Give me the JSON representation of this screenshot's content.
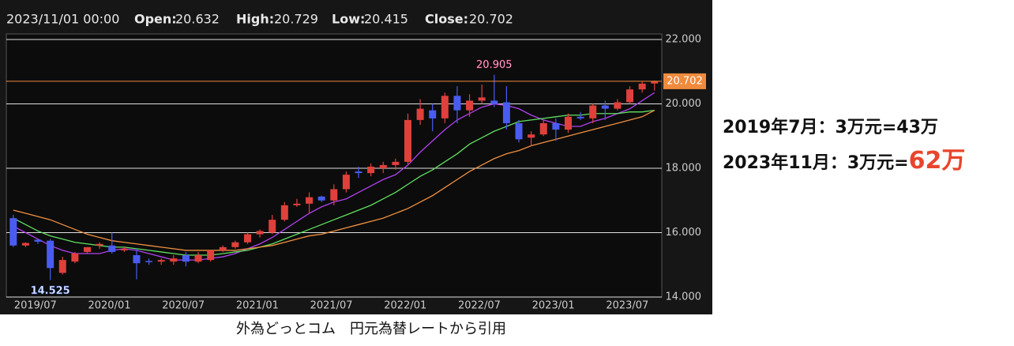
{
  "chart_data": {
    "type": "candlestick",
    "header_time": "2023/11/01 00:00",
    "header_labels": [
      "Open:",
      "High:",
      "Low:",
      "Close:"
    ],
    "categories": [
      "2019/07",
      null,
      null,
      null,
      null,
      null,
      "2020/01",
      null,
      null,
      null,
      null,
      null,
      "2020/07",
      null,
      null,
      null,
      null,
      null,
      "2021/01",
      null,
      null,
      null,
      null,
      null,
      "2021/07",
      null,
      null,
      null,
      null,
      null,
      "2022/01",
      null,
      null,
      null,
      null,
      null,
      "2022/07",
      null,
      null,
      null,
      null,
      null,
      "2023/01",
      null,
      null,
      null,
      null,
      null,
      "2023/07",
      null,
      null,
      null,
      null
    ],
    "open": [
      16.45,
      15.6,
      15.78,
      15.75,
      14.75,
      15.1,
      15.4,
      15.6,
      15.6,
      15.45,
      15.3,
      15.12,
      15.1,
      15.1,
      15.3,
      15.1,
      15.15,
      15.45,
      15.55,
      15.7,
      15.95,
      16.0,
      16.4,
      16.85,
      16.9,
      17.12,
      17.0,
      17.35,
      17.9,
      17.85,
      18.0,
      18.1,
      18.2,
      19.5,
      19.8,
      19.55,
      20.25,
      19.8,
      20.1,
      20.1,
      20.05,
      19.4,
      18.95,
      19.05,
      19.4,
      19.2,
      19.6,
      19.55,
      19.95,
      19.85,
      20.05,
      20.45,
      20.632
    ],
    "high": [
      16.55,
      15.7,
      15.8,
      15.8,
      15.25,
      15.4,
      15.55,
      15.7,
      16.0,
      15.55,
      15.5,
      15.2,
      15.2,
      15.3,
      15.4,
      15.4,
      15.45,
      15.6,
      15.75,
      16.0,
      16.1,
      16.55,
      16.95,
      17.05,
      17.25,
      17.15,
      17.5,
      17.9,
      18.05,
      18.15,
      18.2,
      18.3,
      19.7,
      20.15,
      20.0,
      20.35,
      20.55,
      20.3,
      20.6,
      20.905,
      20.55,
      19.5,
      19.15,
      19.5,
      19.55,
      19.7,
      19.75,
      20.0,
      20.1,
      20.15,
      20.55,
      20.7,
      20.729
    ],
    "low": [
      15.55,
      15.55,
      15.65,
      14.525,
      14.7,
      15.05,
      15.35,
      15.5,
      15.35,
      15.4,
      14.55,
      15.0,
      15.0,
      15.0,
      14.95,
      15.05,
      15.1,
      15.4,
      15.5,
      15.65,
      15.85,
      15.95,
      16.35,
      16.8,
      16.6,
      16.95,
      16.85,
      17.25,
      17.7,
      17.75,
      17.85,
      17.95,
      18.1,
      19.35,
      19.15,
      19.4,
      19.4,
      19.6,
      20.0,
      19.9,
      19.2,
      18.8,
      18.7,
      19.0,
      18.85,
      19.1,
      19.5,
      19.4,
      19.5,
      19.8,
      20.0,
      20.35,
      20.415
    ],
    "close": [
      15.6,
      15.68,
      15.72,
      14.9,
      15.15,
      15.35,
      15.55,
      15.65,
      15.4,
      15.5,
      15.05,
      15.1,
      15.15,
      15.2,
      15.1,
      15.3,
      15.45,
      15.55,
      15.7,
      15.95,
      16.05,
      16.4,
      16.85,
      16.9,
      17.1,
      17.0,
      17.35,
      17.8,
      17.85,
      18.05,
      18.1,
      18.2,
      19.5,
      19.85,
      19.55,
      20.25,
      19.8,
      20.1,
      20.2,
      20.0,
      19.4,
      18.9,
      19.05,
      19.4,
      19.2,
      19.6,
      19.55,
      19.95,
      19.85,
      20.05,
      20.45,
      20.63,
      20.702
    ],
    "up_color": "#e0403c",
    "down_color": "#4a5cf0",
    "series": [
      {
        "color": "#b040f0",
        "values": [
          16.2,
          16.0,
          15.8,
          15.6,
          15.45,
          15.35,
          15.35,
          15.35,
          15.45,
          15.5,
          15.45,
          15.35,
          15.25,
          15.15,
          15.15,
          15.15,
          15.2,
          15.25,
          15.35,
          15.5,
          15.65,
          15.85,
          16.1,
          16.35,
          16.6,
          16.8,
          16.95,
          17.05,
          17.25,
          17.45,
          17.65,
          17.8,
          18.1,
          18.5,
          18.85,
          19.2,
          19.5,
          19.7,
          19.9,
          20.0,
          19.95,
          19.85,
          19.65,
          19.5,
          19.4,
          19.3,
          19.3,
          19.45,
          19.55,
          19.7,
          19.85,
          20.1,
          20.35
        ]
      },
      {
        "color": "#60e060",
        "values": [
          16.45,
          16.25,
          16.05,
          15.9,
          15.8,
          15.7,
          15.65,
          15.6,
          15.55,
          15.55,
          15.5,
          15.45,
          15.4,
          15.35,
          15.3,
          15.3,
          15.3,
          15.35,
          15.4,
          15.45,
          15.55,
          15.65,
          15.8,
          15.95,
          16.1,
          16.25,
          16.4,
          16.55,
          16.7,
          16.85,
          17.05,
          17.25,
          17.5,
          17.75,
          17.95,
          18.2,
          18.45,
          18.75,
          18.95,
          19.15,
          19.3,
          19.45,
          19.5,
          19.55,
          19.6,
          19.65,
          19.65,
          19.7,
          19.7,
          19.7,
          19.75,
          19.75,
          19.8
        ]
      },
      {
        "color": "#f09040",
        "values": [
          16.7,
          16.6,
          16.5,
          16.4,
          16.25,
          16.1,
          15.95,
          15.85,
          15.75,
          15.7,
          15.65,
          15.6,
          15.55,
          15.5,
          15.45,
          15.45,
          15.45,
          15.45,
          15.45,
          15.5,
          15.55,
          15.6,
          15.7,
          15.8,
          15.9,
          15.95,
          16.05,
          16.15,
          16.25,
          16.35,
          16.45,
          16.6,
          16.75,
          16.95,
          17.15,
          17.4,
          17.65,
          17.9,
          18.1,
          18.3,
          18.45,
          18.55,
          18.7,
          18.8,
          18.9,
          19.0,
          19.1,
          19.2,
          19.3,
          19.4,
          19.5,
          19.6,
          19.8
        ]
      }
    ],
    "price_line_color": "#f08a3c",
    "ylim": [
      14,
      22
    ],
    "yticks": [
      {
        "value": 14,
        "label": "14.000"
      },
      {
        "value": 16,
        "label": "16.000"
      },
      {
        "value": 18,
        "label": "18.000"
      },
      {
        "value": 20,
        "label": "20.000"
      },
      {
        "value": 22,
        "label": "22.000"
      }
    ],
    "grid": true,
    "caption": "外為どっとコム　円元為替レートから引用",
    "notes": [
      "2019年7月：3万元=43万",
      "2023年11月：3万元=",
      "62万"
    ]
  }
}
